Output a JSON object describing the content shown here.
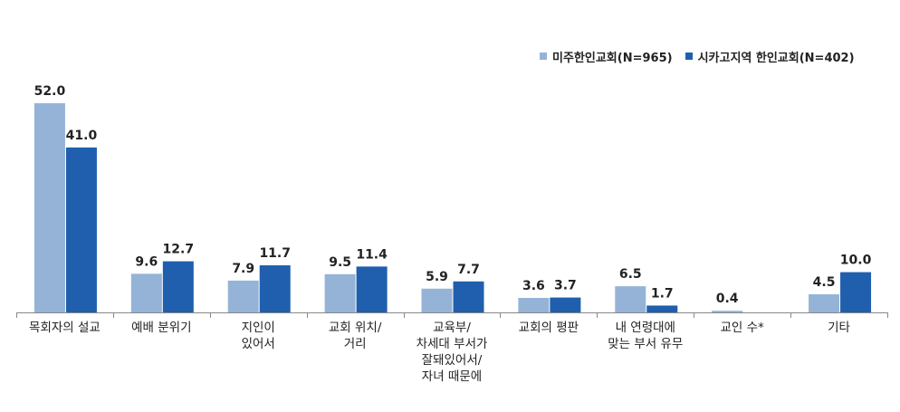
{
  "chart_data": {
    "type": "bar",
    "categories": [
      [
        "목회자의 설교"
      ],
      [
        "예배 분위기"
      ],
      [
        "지인이",
        "있어서"
      ],
      [
        "교회 위치/",
        "거리"
      ],
      [
        "교육부/",
        "차세대 부서가",
        "잘돼있어서/",
        "자녀 때문에"
      ],
      [
        "교회의 평판"
      ],
      [
        "내 연령대에",
        "맞는 부서 유무"
      ],
      [
        "교인 수*"
      ],
      [
        "기타"
      ]
    ],
    "series": [
      {
        "name": "미주한인교회(N=965)",
        "color": "#95b3d7",
        "values": [
          52.0,
          9.6,
          7.9,
          9.5,
          5.9,
          3.6,
          6.5,
          0.4,
          4.5
        ],
        "labels": [
          "52.0",
          "9.6",
          "7.9",
          "9.5",
          "5.9",
          "3.6",
          "6.5",
          "0.4",
          "4.5"
        ]
      },
      {
        "name": "시카고지역 한인교회(N=402)",
        "color": "#1f5fae",
        "values": [
          41.0,
          12.7,
          11.7,
          11.4,
          7.7,
          3.7,
          1.7,
          null,
          10.0
        ],
        "labels": [
          "41.0",
          "12.7",
          "11.7",
          "11.4",
          "7.7",
          "3.7",
          "1.7",
          "",
          "10.0"
        ]
      }
    ],
    "ylim": [
      0,
      52.0
    ],
    "grid": false,
    "legend_position": "top-right"
  }
}
